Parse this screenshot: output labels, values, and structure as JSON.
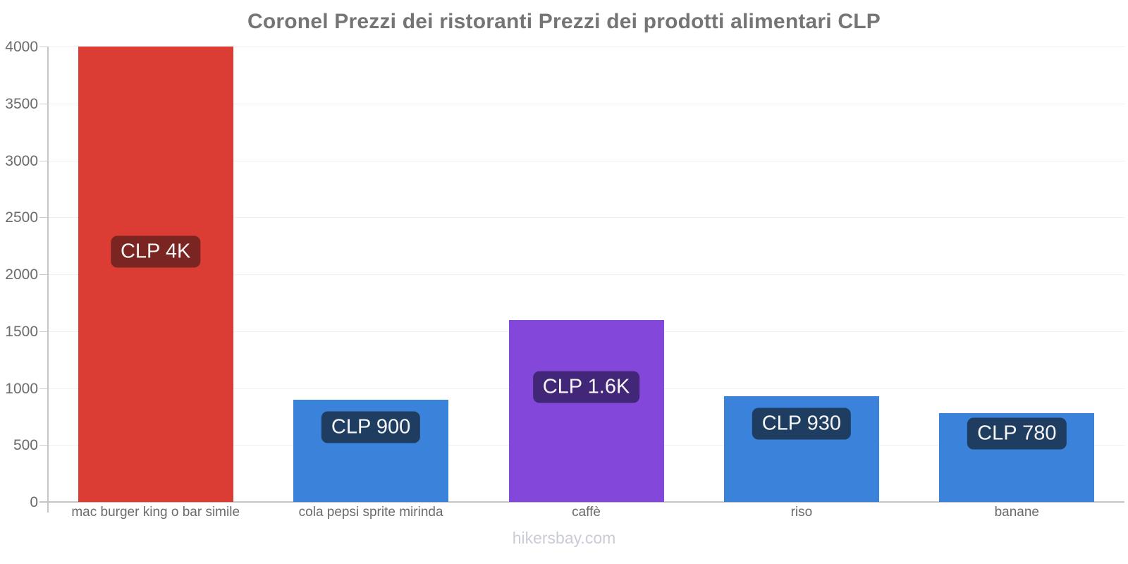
{
  "title": "Coronel Prezzi dei ristoranti Prezzi dei prodotti alimentari CLP",
  "footer": "hikersbay.com",
  "colors": {
    "bar_red": "#db3c33",
    "bar_blue": "#3b83da",
    "bar_purple": "#8347d9",
    "label_bg_red": "#7a2522",
    "label_bg_blue": "#1e3d61",
    "label_bg_purple": "#422677",
    "title_text": "#757575",
    "axis_text": "#6b6b6b",
    "axis_line": "#c6c6c6",
    "gridline": "#f0f0f0",
    "footer_text": "#c9ccd6",
    "label_text": "#f6f6f6"
  },
  "chart_data": {
    "type": "bar",
    "title": "Coronel Prezzi dei ristoranti Prezzi dei prodotti alimentari CLP",
    "categories": [
      "mac burger king o bar simile",
      "cola pepsi sprite mirinda",
      "caffè",
      "riso",
      "banane"
    ],
    "values": [
      4000,
      900,
      1600,
      930,
      780
    ],
    "bar_labels": [
      "CLP 4K",
      "CLP 900",
      "CLP 1.6K",
      "CLP 930",
      "CLP 780"
    ],
    "bar_colors": [
      "#db3c33",
      "#3b83da",
      "#8347d9",
      "#3b83da",
      "#3b83da"
    ],
    "bar_label_bg": [
      "#7a2522",
      "#1e3d61",
      "#422677",
      "#1e3d61",
      "#1e3d61"
    ],
    "xlabel": "",
    "ylabel": "",
    "ylim": [
      0,
      4000
    ],
    "yticks": [
      0,
      500,
      1000,
      1500,
      2000,
      2500,
      3000,
      3500,
      4000
    ],
    "grid": true,
    "legend": "none",
    "watermark": "hikersbay.com"
  }
}
